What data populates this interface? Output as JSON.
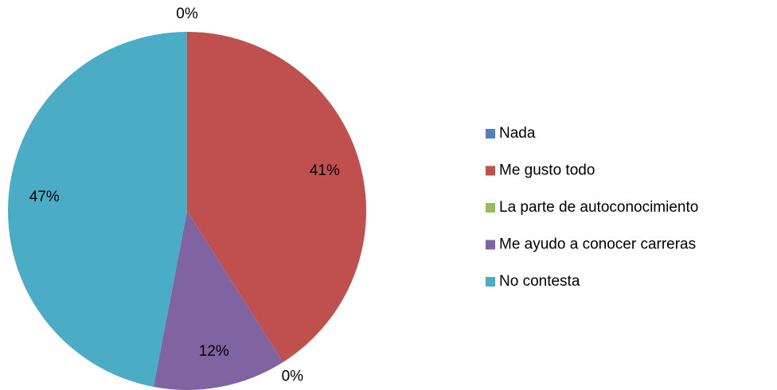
{
  "chart_data": {
    "type": "pie",
    "categories": [
      "Nada",
      "Me gusto todo",
      "La parte de autoconocimiento",
      "Me ayudo a conocer carreras",
      "No contesta"
    ],
    "values": [
      0,
      41,
      0,
      12,
      47
    ],
    "value_labels": [
      "0%",
      "41%",
      "0%",
      "12%",
      "47%"
    ],
    "colors": [
      "#4f81bd",
      "#c0504d",
      "#9bbb59",
      "#8064a2",
      "#4bacc6"
    ],
    "legend": "right"
  }
}
